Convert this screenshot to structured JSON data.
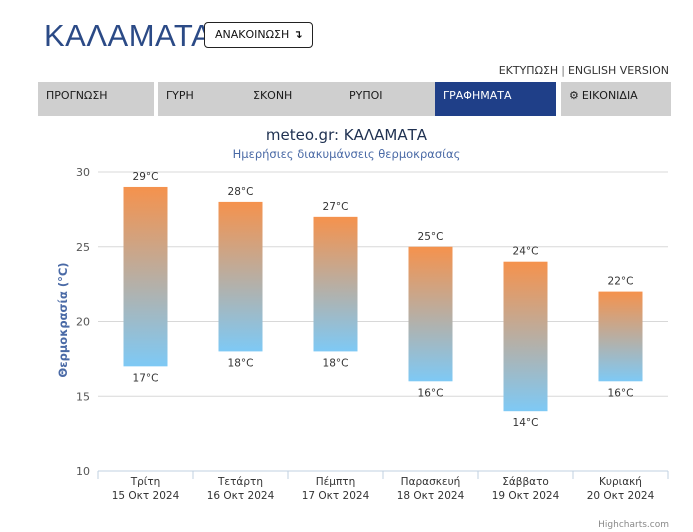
{
  "header": {
    "city": "ΚΑΛΑΜΑΤΑ",
    "announce_label": "ΑΝΑΚΟΙΝΩΣΗ",
    "announce_icon": "↴",
    "print_link": "ΕΚΤΥΠΩΣΗ",
    "separator": "|",
    "english_link": "ENGLISH VERSION"
  },
  "tabs": [
    {
      "label": "ΠΡΟΓΝΩΣΗ"
    },
    {
      "label": "ΓΥΡΗ"
    },
    {
      "label": "ΣΚΟΝΗ"
    },
    {
      "label": "ΡΥΠΟΙ"
    },
    {
      "label": "ΓΡΑΦΗΜΑΤΑ",
      "active": true
    },
    {
      "label": "ΕΙΚΟΝΙΔΙΑ",
      "icon": "gear-icon"
    }
  ],
  "credits": "Highcharts.com",
  "chart_data": {
    "type": "bar",
    "title": "meteo.gr: ΚΑΛΑΜΑΤΑ",
    "subtitle": "Ημερήσιες διακυμάνσεις θερμοκρασίας",
    "ylabel": "Θερμοκρασία (°C)",
    "ylim": [
      10,
      30
    ],
    "yticks": [
      10,
      15,
      20,
      25,
      30
    ],
    "grid": true,
    "categories": [
      {
        "day": "Τρίτη",
        "date": "15 Οκτ 2024"
      },
      {
        "day": "Τετάρτη",
        "date": "16 Οκτ 2024"
      },
      {
        "day": "Πέμπτη",
        "date": "17 Οκτ 2024"
      },
      {
        "day": "Παρασκευή",
        "date": "18 Οκτ 2024"
      },
      {
        "day": "Σάββατο",
        "date": "19 Οκτ 2024"
      },
      {
        "day": "Κυριακή",
        "date": "20 Οκτ 2024"
      }
    ],
    "low": [
      17,
      18,
      18,
      16,
      14,
      16
    ],
    "high": [
      29,
      28,
      27,
      25,
      24,
      22
    ],
    "unit": "°C",
    "colors": {
      "top": "#f5924d",
      "bottom": "#7ec9f5",
      "grid": "#d8d8d8",
      "axis": "#c0d0e0"
    }
  }
}
